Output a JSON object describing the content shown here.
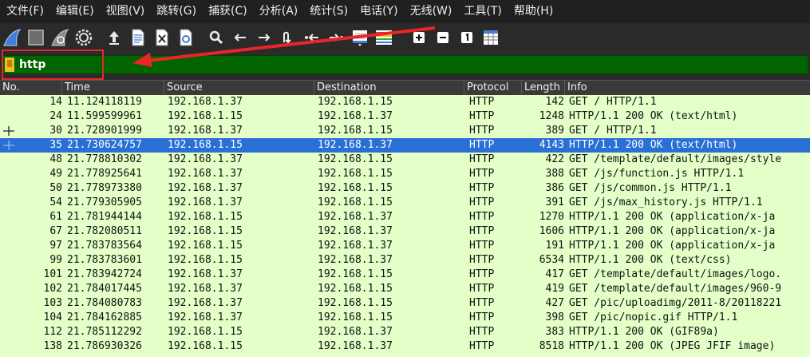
{
  "menu": [
    "文件(F)",
    "编辑(E)",
    "视图(V)",
    "跳转(G)",
    "捕获(C)",
    "分析(A)",
    "统计(S)",
    "电话(Y)",
    "无线(W)",
    "工具(T)",
    "帮助(H)"
  ],
  "toolbar_icons": [
    "shark-fin-start-icon",
    "stop-square-icon",
    "restart-fin-icon",
    "gear-options-icon",
    "open-file-icon",
    "file-icon",
    "close-file-icon",
    "reload-file-icon",
    "search-icon",
    "arrow-left-icon",
    "arrow-right-icon",
    "jump-to-packet-icon",
    "first-packet-icon",
    "last-packet-icon",
    "autoscroll-icon",
    "colorize-icon",
    "zoom-in-icon",
    "zoom-out-icon",
    "normal-size-icon",
    "resize-columns-icon"
  ],
  "filter": {
    "value": "http",
    "field_color": "#006400",
    "highlight_color": "#e8252b"
  },
  "columns": [
    "No.",
    "Time",
    "Source",
    "Destination",
    "Protocol",
    "Length",
    "Info"
  ],
  "packets": [
    {
      "no": "14",
      "time": "11.124118119",
      "src": "192.168.1.37",
      "dst": "192.168.1.15",
      "proto": "HTTP",
      "len": "142",
      "info": "GET / HTTP/1.1"
    },
    {
      "no": "24",
      "time": "11.599599961",
      "src": "192.168.1.15",
      "dst": "192.168.1.37",
      "proto": "HTTP",
      "len": "1248",
      "info": "HTTP/1.1 200 OK  (text/html)"
    },
    {
      "no": "30",
      "time": "21.728901999",
      "src": "192.168.1.37",
      "dst": "192.168.1.15",
      "proto": "HTTP",
      "len": "389",
      "info": "GET / HTTP/1.1"
    },
    {
      "no": "35",
      "time": "21.730624757",
      "src": "192.168.1.15",
      "dst": "192.168.1.37",
      "proto": "HTTP",
      "len": "4143",
      "info": "HTTP/1.1 200 OK  (text/html)"
    },
    {
      "no": "48",
      "time": "21.778810302",
      "src": "192.168.1.37",
      "dst": "192.168.1.15",
      "proto": "HTTP",
      "len": "422",
      "info": "GET /template/default/images/style"
    },
    {
      "no": "49",
      "time": "21.778925641",
      "src": "192.168.1.37",
      "dst": "192.168.1.15",
      "proto": "HTTP",
      "len": "388",
      "info": "GET /js/function.js HTTP/1.1"
    },
    {
      "no": "50",
      "time": "21.778973380",
      "src": "192.168.1.37",
      "dst": "192.168.1.15",
      "proto": "HTTP",
      "len": "386",
      "info": "GET /js/common.js HTTP/1.1"
    },
    {
      "no": "54",
      "time": "21.779305905",
      "src": "192.168.1.37",
      "dst": "192.168.1.15",
      "proto": "HTTP",
      "len": "391",
      "info": "GET /js/max_history.js HTTP/1.1"
    },
    {
      "no": "61",
      "time": "21.781944144",
      "src": "192.168.1.15",
      "dst": "192.168.1.37",
      "proto": "HTTP",
      "len": "1270",
      "info": "HTTP/1.1 200 OK  (application/x-ja"
    },
    {
      "no": "67",
      "time": "21.782080511",
      "src": "192.168.1.15",
      "dst": "192.168.1.37",
      "proto": "HTTP",
      "len": "1606",
      "info": "HTTP/1.1 200 OK  (application/x-ja"
    },
    {
      "no": "97",
      "time": "21.783783564",
      "src": "192.168.1.15",
      "dst": "192.168.1.37",
      "proto": "HTTP",
      "len": "191",
      "info": "HTTP/1.1 200 OK  (application/x-ja"
    },
    {
      "no": "99",
      "time": "21.783783601",
      "src": "192.168.1.15",
      "dst": "192.168.1.37",
      "proto": "HTTP",
      "len": "6534",
      "info": "HTTP/1.1 200 OK  (text/css)"
    },
    {
      "no": "101",
      "time": "21.783942724",
      "src": "192.168.1.37",
      "dst": "192.168.1.15",
      "proto": "HTTP",
      "len": "417",
      "info": "GET /template/default/images/logo."
    },
    {
      "no": "102",
      "time": "21.784017445",
      "src": "192.168.1.37",
      "dst": "192.168.1.15",
      "proto": "HTTP",
      "len": "419",
      "info": "GET /template/default/images/960-9"
    },
    {
      "no": "103",
      "time": "21.784080783",
      "src": "192.168.1.37",
      "dst": "192.168.1.15",
      "proto": "HTTP",
      "len": "427",
      "info": "GET /pic/uploadimg/2011-8/20118221"
    },
    {
      "no": "104",
      "time": "21.784162885",
      "src": "192.168.1.37",
      "dst": "192.168.1.15",
      "proto": "HTTP",
      "len": "398",
      "info": "GET /pic/nopic.gif HTTP/1.1"
    },
    {
      "no": "112",
      "time": "21.785112292",
      "src": "192.168.1.15",
      "dst": "192.168.1.37",
      "proto": "HTTP",
      "len": "383",
      "info": "HTTP/1.1 200 OK  (GIF89a)"
    },
    {
      "no": "138",
      "time": "21.786930326",
      "src": "192.168.1.15",
      "dst": "192.168.1.37",
      "proto": "HTTP",
      "len": "8518",
      "info": "HTTP/1.1 200 OK  (JPEG JFIF image)"
    }
  ],
  "selected_no": "35",
  "row_color": "#e4ffc7",
  "selected_color": "#2a6fd6"
}
